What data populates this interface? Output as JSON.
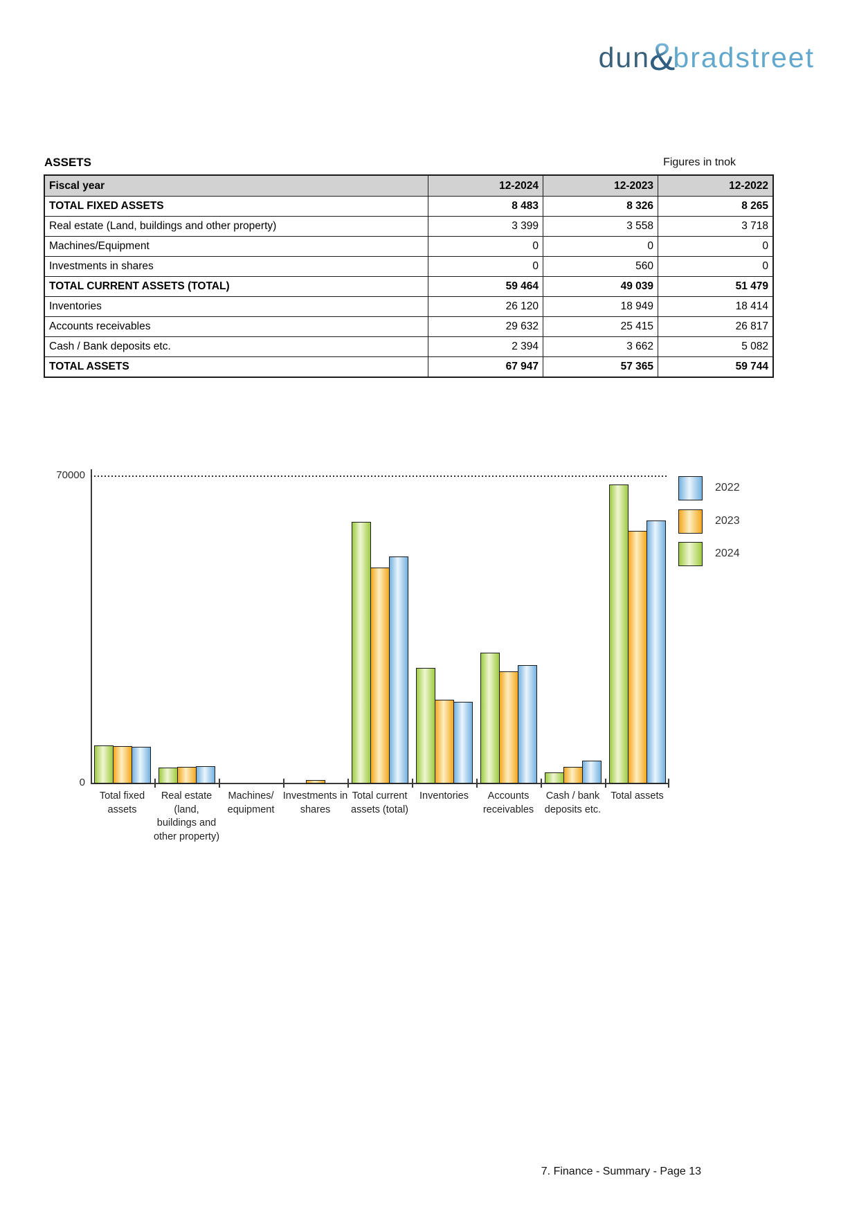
{
  "logo": {
    "part1": "dun",
    "amp": "&",
    "part2": "bradstreet",
    "dun_color": "#3b617a",
    "amp_color": "#2f5e81",
    "bradstreet_color": "#62a8cc"
  },
  "header": {
    "title": "ASSETS",
    "units_note": "Figures in tnok"
  },
  "table": {
    "header": {
      "label": "Fiscal year",
      "cols": [
        "12-2024",
        "12-2023",
        "12-2022"
      ]
    },
    "rows": [
      {
        "label": "TOTAL FIXED ASSETS",
        "bold": true,
        "values": [
          "8 483",
          "8 326",
          "8 265"
        ]
      },
      {
        "label": "Real estate (Land, buildings and other property)",
        "bold": false,
        "values": [
          "3 399",
          "3 558",
          "3 718"
        ]
      },
      {
        "label": "Machines/Equipment",
        "bold": false,
        "values": [
          "0",
          "0",
          "0"
        ]
      },
      {
        "label": "Investments in shares",
        "bold": false,
        "values": [
          "0",
          "560",
          "0"
        ]
      },
      {
        "label": "TOTAL CURRENT ASSETS (TOTAL)",
        "bold": true,
        "values": [
          "59 464",
          "49 039",
          "51 479"
        ]
      },
      {
        "label": "Inventories",
        "bold": false,
        "values": [
          "26 120",
          "18 949",
          "18 414"
        ]
      },
      {
        "label": "Accounts receivables",
        "bold": false,
        "values": [
          "29 632",
          "25 415",
          "26 817"
        ]
      },
      {
        "label": "Cash / Bank deposits etc.",
        "bold": false,
        "values": [
          "2 394",
          "3 662",
          "5 082"
        ]
      },
      {
        "label": "TOTAL ASSETS",
        "bold": true,
        "values": [
          "67 947",
          "57 365",
          "59 744"
        ]
      }
    ]
  },
  "chart_data": {
    "type": "bar",
    "title": "",
    "xlabel": "",
    "ylabel": "",
    "ylim": [
      0,
      70000
    ],
    "yticks": [
      0,
      70000
    ],
    "ytick_labels": [
      "0",
      "70000"
    ],
    "grid": "dotted horizontal gridline at 70000 only",
    "legend_position": "top-right",
    "legend_order": [
      "2022",
      "2023",
      "2024"
    ],
    "categories": [
      "Total fixed assets",
      "Real estate (land, buildings and other property)",
      "Machines/equipment",
      "Investments in shares",
      "Total current assets (total)",
      "Inventories",
      "Accounts receivables",
      "Cash / bank deposits etc.",
      "Total assets"
    ],
    "category_label_lines": [
      [
        "Total fixed",
        "assets"
      ],
      [
        "Real estate",
        "(land,",
        "buildings and",
        "other property)"
      ],
      [
        "Machines/",
        "equipment"
      ],
      [
        "Investments in",
        "shares"
      ],
      [
        "Total current",
        "assets (total)"
      ],
      [
        "Inventories"
      ],
      [
        "Accounts",
        "receivables"
      ],
      [
        "Cash / bank",
        "deposits etc."
      ],
      [
        "Total assets"
      ]
    ],
    "series": [
      {
        "name": "2024",
        "color": "#9fcb41",
        "color_light": "#eff7d3",
        "values": [
          8483,
          3399,
          0,
          0,
          59464,
          26120,
          29632,
          2394,
          67947
        ]
      },
      {
        "name": "2023",
        "color": "#f4a81f",
        "color_light": "#fdeec1",
        "values": [
          8326,
          3558,
          0,
          560,
          49039,
          18949,
          25415,
          3662,
          57365
        ]
      },
      {
        "name": "2022",
        "color": "#74b1e0",
        "color_light": "#eaf5fd",
        "values": [
          8265,
          3718,
          0,
          0,
          51479,
          18414,
          26817,
          5082,
          59744
        ]
      }
    ]
  },
  "footer": {
    "text": "7. Finance - Summary - Page 13"
  }
}
